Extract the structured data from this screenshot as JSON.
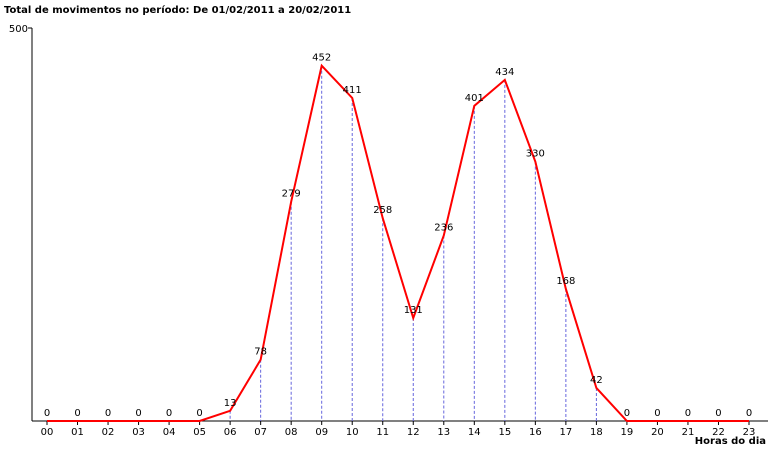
{
  "chart_data": {
    "type": "line",
    "title": "Total de movimentos no período: De 01/02/2011 a 20/02/2011",
    "x_label": "Horas do dia",
    "categories": [
      "00",
      "01",
      "02",
      "03",
      "04",
      "05",
      "06",
      "07",
      "08",
      "09",
      "10",
      "11",
      "12",
      "13",
      "14",
      "15",
      "16",
      "17",
      "18",
      "19",
      "20",
      "21",
      "22",
      "23"
    ],
    "series": [
      {
        "color": "#ff0000",
        "values": [
          0,
          0,
          0,
          0,
          0,
          0,
          13,
          78,
          279,
          452,
          411,
          258,
          131,
          236,
          401,
          434,
          330,
          168,
          42,
          0,
          0,
          0,
          0,
          0
        ]
      }
    ],
    "ylim": [
      0,
      500
    ],
    "yticks": [
      500
    ],
    "drop_lines": true,
    "drop_line_color": "#6666dd"
  }
}
